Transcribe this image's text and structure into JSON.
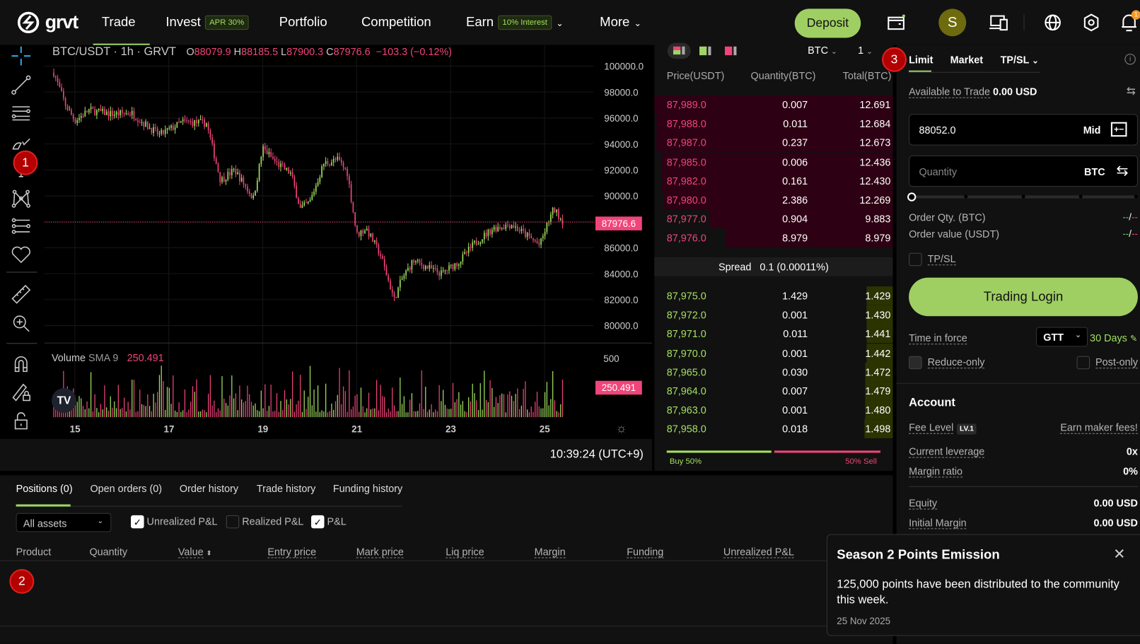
{
  "nav": {
    "logo": "grvt",
    "items": [
      {
        "label": "Trade"
      },
      {
        "label": "Invest",
        "badge": "APR 30%"
      },
      {
        "label": "Portfolio"
      },
      {
        "label": "Competition"
      },
      {
        "label": "Earn",
        "badge": "10% Interest"
      },
      {
        "label": "More"
      }
    ],
    "deposit": "Deposit",
    "avatar": "S",
    "notif_count": "1"
  },
  "chart": {
    "symbol": "BTC/USDT · 1h · GRVT",
    "o_l": "O",
    "o": "88079.9",
    "h_l": "H",
    "h": "88185.5",
    "l_l": "L",
    "l": "87900.3",
    "c_l": "C",
    "c": "87976.6",
    "change": "−103.3 (−0.12%)",
    "last_price": "87976.6",
    "volume_label": "Volume",
    "sma_label": "SMA 9",
    "sma_value": "250.491",
    "vol_axis_top": "500",
    "time": "10:39:24 (UTC+9)"
  },
  "chart_data": {
    "type": "candlestick",
    "title": "BTC/USDT · 1h · GRVT",
    "yticks": [
      "100000.0",
      "98000.0",
      "96000.0",
      "94000.0",
      "92000.0",
      "90000.0",
      "86000.0",
      "84000.0",
      "82000.0",
      "80000.0"
    ],
    "ylim": [
      80000,
      100000
    ],
    "xticks": [
      "15",
      "17",
      "19",
      "21",
      "23",
      "25"
    ],
    "price_path": [
      [
        14.55,
        99500
      ],
      [
        14.8,
        97000
      ],
      [
        15.0,
        95800
      ],
      [
        15.3,
        96600
      ],
      [
        15.8,
        96300
      ],
      [
        16.2,
        96400
      ],
      [
        16.5,
        95500
      ],
      [
        16.8,
        94700
      ],
      [
        17.3,
        95700
      ],
      [
        17.8,
        95600
      ],
      [
        18.1,
        91200
      ],
      [
        18.4,
        92000
      ],
      [
        18.8,
        89800
      ],
      [
        19.0,
        93700
      ],
      [
        19.3,
        92500
      ],
      [
        19.6,
        91700
      ],
      [
        19.8,
        89000
      ],
      [
        20.0,
        89500
      ],
      [
        20.3,
        92500
      ],
      [
        20.6,
        92800
      ],
      [
        20.8,
        91800
      ],
      [
        21.0,
        87000
      ],
      [
        21.2,
        87500
      ],
      [
        21.5,
        85500
      ],
      [
        21.8,
        82000
      ],
      [
        21.95,
        83500
      ],
      [
        22.2,
        85000
      ],
      [
        22.5,
        84500
      ],
      [
        22.8,
        84000
      ],
      [
        23.2,
        85000
      ],
      [
        23.5,
        86300
      ],
      [
        23.9,
        87500
      ],
      [
        24.3,
        87800
      ],
      [
        24.6,
        87000
      ],
      [
        24.9,
        86200
      ],
      [
        25.1,
        88200
      ],
      [
        25.2,
        89000
      ],
      [
        25.4,
        87976
      ]
    ],
    "volume_ylim": [
      0,
      500
    ],
    "volume_sma": 250.491
  },
  "orderbook": {
    "unit": "BTC",
    "precision": "1",
    "headers": [
      "Price(USDT)",
      "Quantity(BTC)",
      "Total(BTC)"
    ],
    "asks": [
      [
        "87,989.0",
        "0.007",
        "12.691"
      ],
      [
        "87,988.0",
        "0.011",
        "12.684"
      ],
      [
        "87,987.0",
        "0.237",
        "12.673"
      ],
      [
        "87,985.0",
        "0.006",
        "12.436"
      ],
      [
        "87,982.0",
        "0.161",
        "12.430"
      ],
      [
        "87,980.0",
        "2.386",
        "12.269"
      ],
      [
        "87,977.0",
        "0.904",
        "9.883"
      ],
      [
        "87,976.0",
        "8.979",
        "8.979"
      ]
    ],
    "ask_depth": [
      1,
      0.99,
      0.99,
      0.97,
      0.97,
      0.96,
      0.77,
      0.7
    ],
    "spread_label": "Spread",
    "spread": "0.1 (0.00011%)",
    "bids": [
      [
        "87,975.0",
        "1.429",
        "1.429"
      ],
      [
        "87,972.0",
        "0.001",
        "1.430"
      ],
      [
        "87,971.0",
        "0.011",
        "1.441"
      ],
      [
        "87,970.0",
        "0.001",
        "1.442"
      ],
      [
        "87,965.0",
        "0.030",
        "1.472"
      ],
      [
        "87,964.0",
        "0.007",
        "1.479"
      ],
      [
        "87,963.0",
        "0.001",
        "1.480"
      ],
      [
        "87,958.0",
        "0.018",
        "1.498"
      ]
    ],
    "bid_depth": [
      0.11,
      0.11,
      0.11,
      0.11,
      0.116,
      0.117,
      0.117,
      0.118
    ],
    "buy_label": "Buy 50%",
    "sell_label": "50% Sell",
    "buy_pct": 50
  },
  "order": {
    "tabs": [
      "Limit",
      "Market",
      "TP/SL"
    ],
    "avail_label": "Available to Trade",
    "avail": "0.00 USD",
    "price": "88052.0",
    "mid": "Mid",
    "qty_placeholder": "Quantity",
    "qty_unit": "BTC",
    "slider_pct": 0,
    "order_qty_label": "Order Qty. (BTC)",
    "order_value_label": "Order value (USDT)",
    "dash_green": "--",
    "dash_sep": "/",
    "dash_red": "--",
    "tpsl": "TP/SL",
    "login": "Trading Login",
    "tif_label": "Time in force",
    "tif": "GTT",
    "days": "30 Days",
    "reduce": "Reduce-only",
    "post": "Post-only"
  },
  "account": {
    "title": "Account",
    "fee_label": "Fee Level",
    "fee_badge": "LV.1",
    "earn": "Earn maker fees!",
    "lev_label": "Current leverage",
    "lev": "0x",
    "mr_label": "Margin ratio",
    "mr": "0%",
    "eq_label": "Equity",
    "eq": "0.00 USD",
    "im_label": "Initial Margin",
    "im": "0.00 USD"
  },
  "bottom": {
    "tabs": [
      "Positions (0)",
      "Open orders (0)",
      "Order history",
      "Trade history",
      "Funding history"
    ],
    "assets": "All assets",
    "f1": "Unrealized P&L",
    "f2": "Realized P&L",
    "f3": "P&L",
    "cols": [
      "Product",
      "Quantity",
      "Value",
      "Entry price",
      "Mark price",
      "Liq price",
      "Margin",
      "Funding",
      "Unrealized P&L"
    ]
  },
  "popup": {
    "title": "Season 2 Points Emission",
    "body": "125,000 points have been distributed to the community this week.",
    "date": "25 Nov 2025"
  },
  "badges": [
    "1",
    "2",
    "3"
  ]
}
